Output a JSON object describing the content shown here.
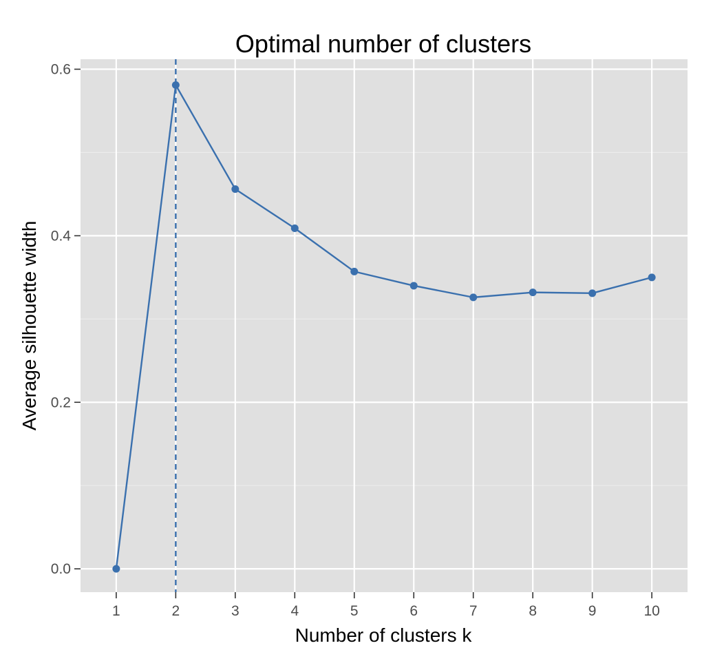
{
  "chart_data": {
    "type": "line",
    "title": "Optimal number of clusters",
    "xlabel": "Number of clusters k",
    "ylabel": "Average silhouette width",
    "x": [
      1,
      2,
      3,
      4,
      5,
      6,
      7,
      8,
      9,
      10
    ],
    "x_tick_labels": [
      "1",
      "2",
      "3",
      "4",
      "5",
      "6",
      "7",
      "8",
      "9",
      "10"
    ],
    "y_ticks": [
      0.0,
      0.2,
      0.4,
      0.6
    ],
    "y_tick_labels": [
      "0.0",
      "0.2",
      "0.4",
      "0.6"
    ],
    "series": [
      {
        "values": [
          0.0,
          0.581,
          0.456,
          0.409,
          0.357,
          0.34,
          0.326,
          0.332,
          0.331,
          0.35
        ]
      }
    ],
    "vline": {
      "x": 2,
      "style": "dashed"
    },
    "xlim": [
      0.4,
      10.6
    ],
    "ylim": [
      -0.028,
      0.612
    ],
    "grid": true,
    "colors": {
      "line": "#3a70ae",
      "panel": "#e0e0e0",
      "grid_major": "#ffffff",
      "grid_minor": "#ececec",
      "tick_text": "#4d4d4d"
    }
  }
}
